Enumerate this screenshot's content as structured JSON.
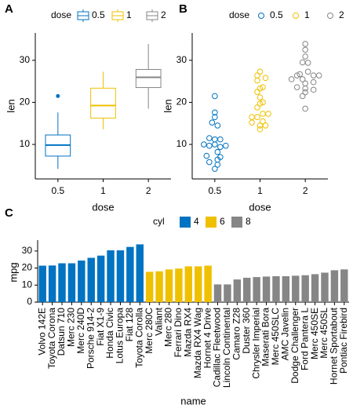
{
  "chart_data": [
    {
      "type": "box",
      "tag": "A",
      "legend_title": "dose",
      "x_label": "dose",
      "y_label": "len",
      "categories": [
        "0.5",
        "1",
        "2"
      ],
      "colors": [
        "#0073C2",
        "#EFC000",
        "#868686"
      ],
      "min": [
        4.2,
        13.6,
        18.5
      ],
      "q1": [
        7.225,
        16.25,
        23.525
      ],
      "median": [
        9.85,
        19.25,
        25.95
      ],
      "q3": [
        12.25,
        23.375,
        27.825
      ],
      "max": [
        17.6,
        27.3,
        33.9
      ],
      "outliers": [
        [
          21.5
        ],
        [],
        []
      ],
      "ylim": [
        1.8,
        36.5
      ],
      "yticks": [
        10,
        20,
        30
      ]
    },
    {
      "type": "dotplot",
      "tag": "B",
      "legend_title": "dose",
      "x_label": "dose",
      "y_label": "len",
      "categories": [
        "0.5",
        "1",
        "2"
      ],
      "colors": [
        "#0073C2",
        "#EFC000",
        "#868686"
      ],
      "values": [
        [
          4.2,
          11.5,
          7.3,
          5.8,
          6.4,
          10,
          11.2,
          11.2,
          5.2,
          7,
          15.2,
          21.5,
          17.6,
          9.7,
          14.5,
          10,
          8.2,
          9.4,
          16.5,
          9.7
        ],
        [
          16.5,
          16.5,
          15.2,
          17.3,
          22.5,
          17.3,
          13.6,
          14.5,
          18.8,
          15.5,
          19.7,
          23.3,
          23.6,
          26.4,
          20,
          25.2,
          25.8,
          21.2,
          14.5,
          27.3
        ],
        [
          23.6,
          18.5,
          33.9,
          25.5,
          26.4,
          32.5,
          26.7,
          21.5,
          23.3,
          29.5,
          25.5,
          26.4,
          22.4,
          24.5,
          24.8,
          30.9,
          26.4,
          27.3,
          29.4,
          23
        ]
      ],
      "ylim": [
        1.8,
        36.5
      ],
      "yticks": [
        10,
        20,
        30
      ]
    },
    {
      "type": "bar",
      "tag": "C",
      "legend_title": "cyl",
      "x_label": "name",
      "y_label": "mpg",
      "categories": [
        "Volvo 142E",
        "Toyota Corona",
        "Datsun 710",
        "Merc 230",
        "Merc 240D",
        "Porsche 914-2",
        "Fiat X1-9",
        "Honda Civic",
        "Lotus Europa",
        "Fiat 128",
        "Toyota Corolla",
        "Merc 280C",
        "Valiant",
        "Merc 280",
        "Ferrari Dino",
        "Mazda RX4",
        "Mazda RX4 Wag",
        "Hornet 4 Drive",
        "Cadillac Fleetwood",
        "Lincoln Continental",
        "Camaro Z28",
        "Duster 360",
        "Chrysler Imperial",
        "Maserati Bora",
        "Merc 450SLC",
        "AMC Javelin",
        "Dodge Challenger",
        "Ford Pantera L",
        "Merc 450SE",
        "Merc 450SL",
        "Hornet Sportabout",
        "Pontiac Firebird"
      ],
      "series": [
        {
          "name": "4",
          "color": "#0073C2",
          "values": [
            21.4,
            21.5,
            22.8,
            22.8,
            24.4,
            26.0,
            27.3,
            30.4,
            30.4,
            32.4,
            33.9,
            null,
            null,
            null,
            null,
            null,
            null,
            null,
            null,
            null,
            null,
            null,
            null,
            null,
            null,
            null,
            null,
            null,
            null,
            null,
            null,
            null
          ]
        },
        {
          "name": "6",
          "color": "#EFC000",
          "values": [
            null,
            null,
            null,
            null,
            null,
            null,
            null,
            null,
            null,
            null,
            null,
            17.8,
            18.1,
            19.2,
            19.7,
            21.0,
            21.0,
            21.4,
            null,
            null,
            null,
            null,
            null,
            null,
            null,
            null,
            null,
            null,
            null,
            null,
            null,
            null
          ]
        },
        {
          "name": "8",
          "color": "#868686",
          "values": [
            null,
            null,
            null,
            null,
            null,
            null,
            null,
            null,
            null,
            null,
            null,
            null,
            null,
            null,
            null,
            null,
            null,
            null,
            10.4,
            10.4,
            13.3,
            14.3,
            14.7,
            15.0,
            15.2,
            15.2,
            15.5,
            15.8,
            16.4,
            17.3,
            18.7,
            19.2
          ]
        }
      ],
      "ylim": [
        0,
        35
      ],
      "yticks": [
        0,
        10,
        20,
        30
      ]
    }
  ]
}
